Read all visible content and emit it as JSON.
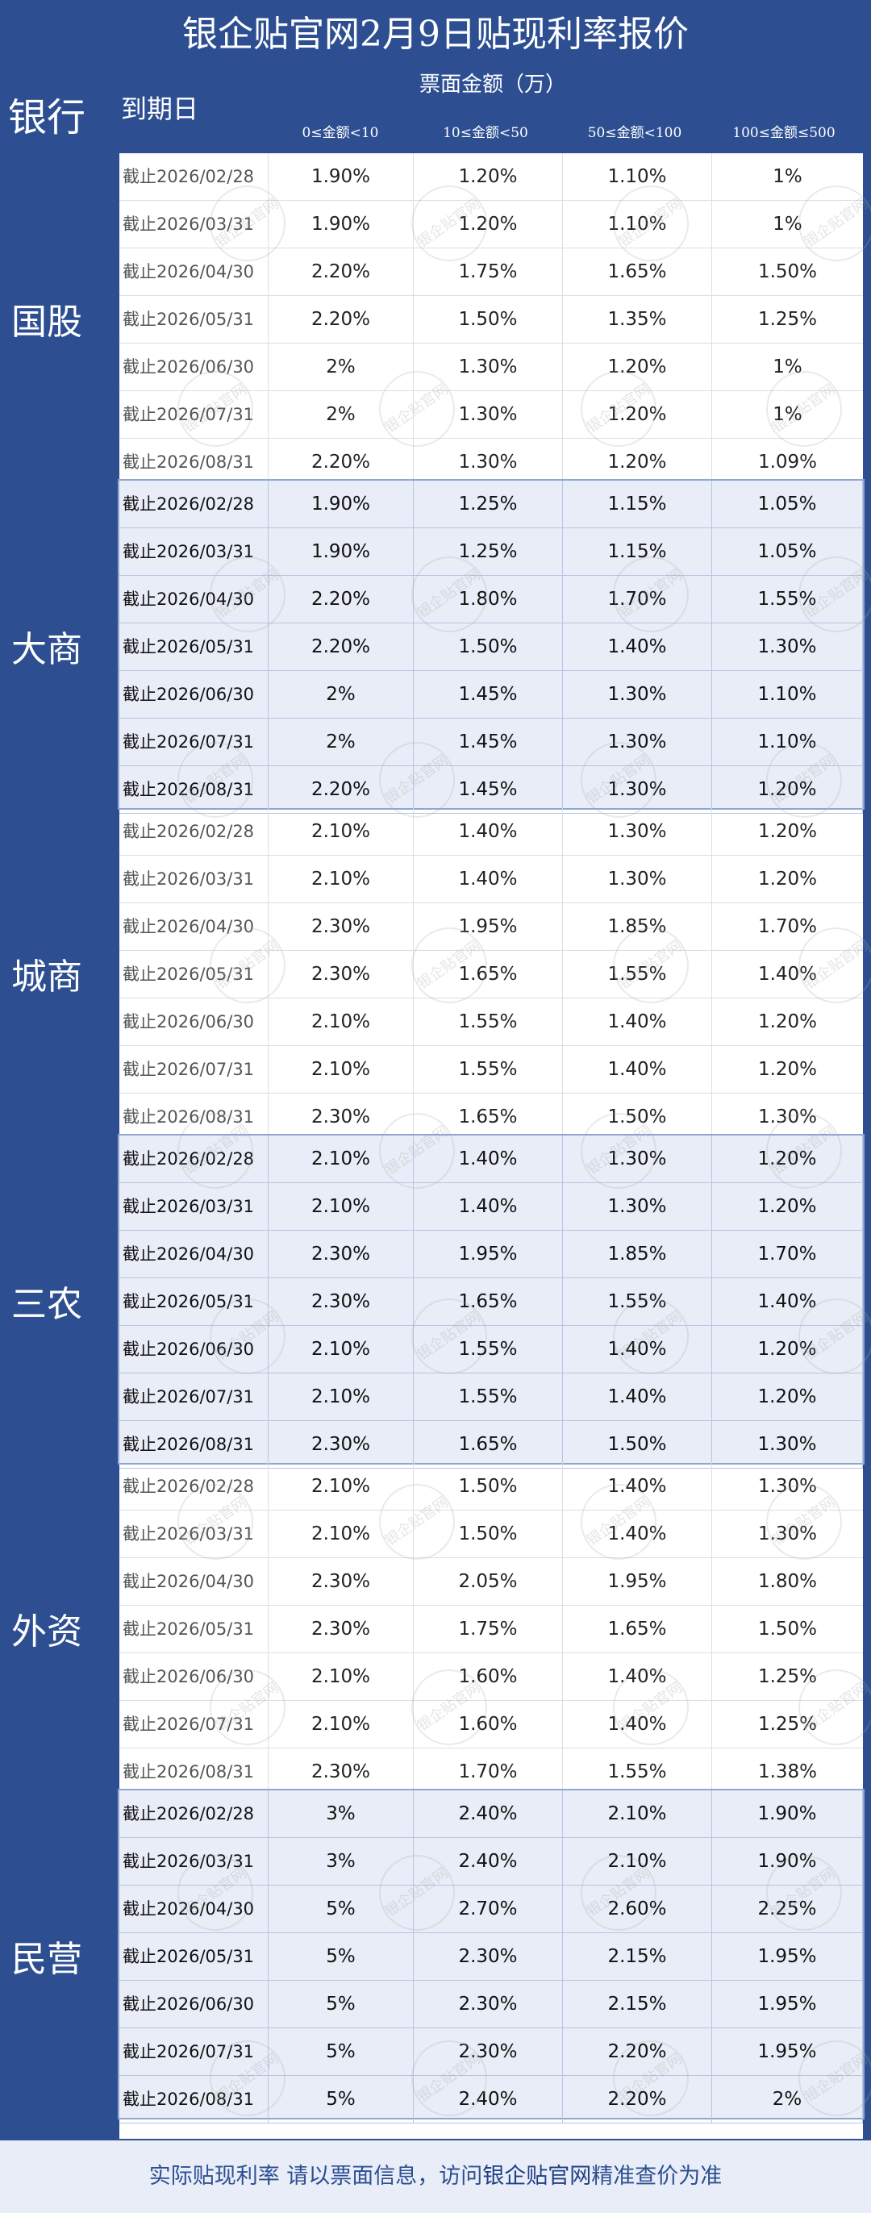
{
  "title": "银企贴官网2月9日贴现利率报价",
  "header": {
    "bank_label": "银行",
    "due_label": "到期日",
    "amount_label": "票面金额（万）",
    "columns": [
      "0≤金额<10",
      "10≤金额<50",
      "50≤金额<100",
      "100≤金额≤500"
    ]
  },
  "groups": [
    {
      "name": "国股",
      "rows": [
        [
          "截止2026/02/28",
          "1.90%",
          "1.20%",
          "1.10%",
          "1%"
        ],
        [
          "截止2026/03/31",
          "1.90%",
          "1.20%",
          "1.10%",
          "1%"
        ],
        [
          "截止2026/04/30",
          "2.20%",
          "1.75%",
          "1.65%",
          "1.50%"
        ],
        [
          "截止2026/05/31",
          "2.20%",
          "1.50%",
          "1.35%",
          "1.25%"
        ],
        [
          "截止2026/06/30",
          "2%",
          "1.30%",
          "1.20%",
          "1%"
        ],
        [
          "截止2026/07/31",
          "2%",
          "1.30%",
          "1.20%",
          "1%"
        ],
        [
          "截止2026/08/31",
          "2.20%",
          "1.30%",
          "1.20%",
          "1.09%"
        ]
      ]
    },
    {
      "name": "大商",
      "rows": [
        [
          "截止2026/02/28",
          "1.90%",
          "1.25%",
          "1.15%",
          "1.05%"
        ],
        [
          "截止2026/03/31",
          "1.90%",
          "1.25%",
          "1.15%",
          "1.05%"
        ],
        [
          "截止2026/04/30",
          "2.20%",
          "1.80%",
          "1.70%",
          "1.55%"
        ],
        [
          "截止2026/05/31",
          "2.20%",
          "1.50%",
          "1.40%",
          "1.30%"
        ],
        [
          "截止2026/06/30",
          "2%",
          "1.45%",
          "1.30%",
          "1.10%"
        ],
        [
          "截止2026/07/31",
          "2%",
          "1.45%",
          "1.30%",
          "1.10%"
        ],
        [
          "截止2026/08/31",
          "2.20%",
          "1.45%",
          "1.30%",
          "1.20%"
        ]
      ]
    },
    {
      "name": "城商",
      "rows": [
        [
          "截止2026/02/28",
          "2.10%",
          "1.40%",
          "1.30%",
          "1.20%"
        ],
        [
          "截止2026/03/31",
          "2.10%",
          "1.40%",
          "1.30%",
          "1.20%"
        ],
        [
          "截止2026/04/30",
          "2.30%",
          "1.95%",
          "1.85%",
          "1.70%"
        ],
        [
          "截止2026/05/31",
          "2.30%",
          "1.65%",
          "1.55%",
          "1.40%"
        ],
        [
          "截止2026/06/30",
          "2.10%",
          "1.55%",
          "1.40%",
          "1.20%"
        ],
        [
          "截止2026/07/31",
          "2.10%",
          "1.55%",
          "1.40%",
          "1.20%"
        ],
        [
          "截止2026/08/31",
          "2.30%",
          "1.65%",
          "1.50%",
          "1.30%"
        ]
      ]
    },
    {
      "name": "三农",
      "rows": [
        [
          "截止2026/02/28",
          "2.10%",
          "1.40%",
          "1.30%",
          "1.20%"
        ],
        [
          "截止2026/03/31",
          "2.10%",
          "1.40%",
          "1.30%",
          "1.20%"
        ],
        [
          "截止2026/04/30",
          "2.30%",
          "1.95%",
          "1.85%",
          "1.70%"
        ],
        [
          "截止2026/05/31",
          "2.30%",
          "1.65%",
          "1.55%",
          "1.40%"
        ],
        [
          "截止2026/06/30",
          "2.10%",
          "1.55%",
          "1.40%",
          "1.20%"
        ],
        [
          "截止2026/07/31",
          "2.10%",
          "1.55%",
          "1.40%",
          "1.20%"
        ],
        [
          "截止2026/08/31",
          "2.30%",
          "1.65%",
          "1.50%",
          "1.30%"
        ]
      ]
    },
    {
      "name": "外资",
      "rows": [
        [
          "截止2026/02/28",
          "2.10%",
          "1.50%",
          "1.40%",
          "1.30%"
        ],
        [
          "截止2026/03/31",
          "2.10%",
          "1.50%",
          "1.40%",
          "1.30%"
        ],
        [
          "截止2026/04/30",
          "2.30%",
          "2.05%",
          "1.95%",
          "1.80%"
        ],
        [
          "截止2026/05/31",
          "2.30%",
          "1.75%",
          "1.65%",
          "1.50%"
        ],
        [
          "截止2026/06/30",
          "2.10%",
          "1.60%",
          "1.40%",
          "1.25%"
        ],
        [
          "截止2026/07/31",
          "2.10%",
          "1.60%",
          "1.40%",
          "1.25%"
        ],
        [
          "截止2026/08/31",
          "2.30%",
          "1.70%",
          "1.55%",
          "1.38%"
        ]
      ]
    },
    {
      "name": "民营",
      "rows": [
        [
          "截止2026/02/28",
          "3%",
          "2.40%",
          "2.10%",
          "1.90%"
        ],
        [
          "截止2026/03/31",
          "3%",
          "2.40%",
          "2.10%",
          "1.90%"
        ],
        [
          "截止2026/04/30",
          "5%",
          "2.70%",
          "2.60%",
          "2.25%"
        ],
        [
          "截止2026/05/31",
          "5%",
          "2.30%",
          "2.15%",
          "1.95%"
        ],
        [
          "截止2026/06/30",
          "5%",
          "2.30%",
          "2.15%",
          "1.95%"
        ],
        [
          "截止2026/07/31",
          "5%",
          "2.30%",
          "2.20%",
          "1.95%"
        ],
        [
          "截止2026/08/31",
          "5%",
          "2.40%",
          "2.20%",
          "2%"
        ]
      ]
    }
  ],
  "footer": {
    "prefix": "实际贴现利率  请以票面信息，访问",
    "brand": "银企贴官网",
    "suffix": "精准查价为准"
  },
  "watermark": "银企贴官网",
  "colors": {
    "header_bg": "#2d4f92",
    "alt_row_bg": "#e8edf7"
  }
}
